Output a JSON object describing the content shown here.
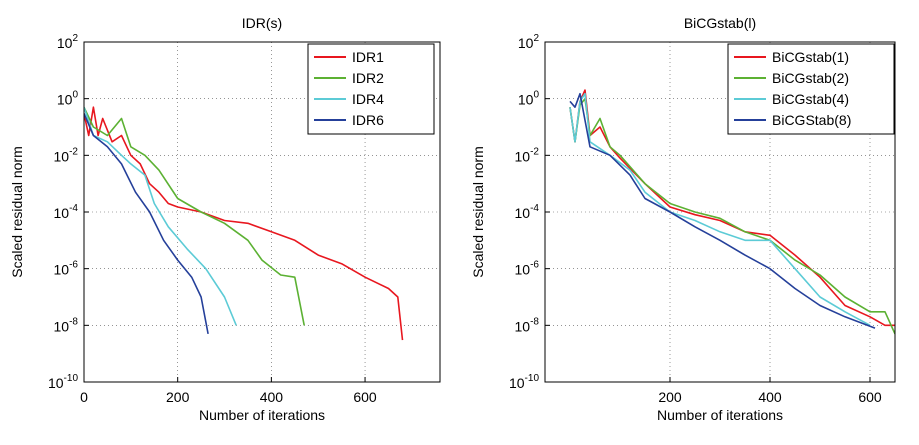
{
  "chart_data": [
    {
      "type": "line",
      "title": "IDR(s)",
      "x_label": "Number of iterations",
      "y_label": "Scaled residual norm",
      "log_y": true,
      "grid": true,
      "legend": "upper right",
      "xlim": [
        0,
        760
      ],
      "xticks": [
        0,
        200,
        400,
        600
      ],
      "ylim": [
        1e-10,
        100
      ],
      "yticks": [
        {
          "value": 100,
          "label": "10^2"
        },
        {
          "value": 1,
          "label": "10^0"
        },
        {
          "value": 0.01,
          "label": "10^-2"
        },
        {
          "value": 0.0001,
          "label": "10^-4"
        },
        {
          "value": 1e-06,
          "label": "10^-6"
        },
        {
          "value": 1e-08,
          "label": "10^-8"
        },
        {
          "value": 1e-10,
          "label": "10^-10"
        }
      ],
      "series": [
        {
          "name": "IDR1",
          "color": "#e8171f",
          "x": [
            0,
            10,
            20,
            30,
            40,
            60,
            80,
            100,
            120,
            140,
            160,
            180,
            200,
            250,
            300,
            350,
            400,
            450,
            500,
            550,
            600,
            650,
            670,
            680
          ],
          "values": [
            0.3,
            0.05,
            0.5,
            0.05,
            0.2,
            0.03,
            0.05,
            0.01,
            0.005,
            0.001,
            0.0005,
            0.0002,
            0.00015,
            0.0001,
            5e-05,
            4e-05,
            2e-05,
            1e-05,
            3e-06,
            1.5e-06,
            5e-07,
            2e-07,
            1e-07,
            3e-09
          ]
        },
        {
          "name": "IDR2",
          "color": "#5cb133",
          "x": [
            0,
            20,
            50,
            80,
            100,
            130,
            160,
            200,
            250,
            300,
            350,
            380,
            420,
            450,
            470
          ],
          "values": [
            0.5,
            0.1,
            0.05,
            0.2,
            0.02,
            0.01,
            0.003,
            0.0003,
            0.0001,
            4e-05,
            1e-05,
            2e-06,
            6e-07,
            5e-07,
            1e-08
          ]
        },
        {
          "name": "IDR4",
          "color": "#5ccbd6",
          "x": [
            0,
            20,
            50,
            80,
            100,
            130,
            150,
            180,
            220,
            260,
            300,
            325
          ],
          "values": [
            0.5,
            0.05,
            0.03,
            0.01,
            0.005,
            0.002,
            0.0002,
            3e-05,
            5e-06,
            1e-06,
            1e-07,
            1e-08
          ]
        },
        {
          "name": "IDR6",
          "color": "#25409a",
          "x": [
            0,
            20,
            50,
            80,
            110,
            140,
            170,
            200,
            230,
            250,
            265
          ],
          "values": [
            0.3,
            0.05,
            0.02,
            0.005,
            0.0005,
            0.0001,
            1e-05,
            2e-06,
            5e-07,
            1e-07,
            5e-09
          ]
        }
      ]
    },
    {
      "type": "line",
      "title": "BiCGstab(l)",
      "x_label": "Number of iterations",
      "y_label": "Scaled residual norm",
      "log_y": true,
      "grid": true,
      "legend": "upper right",
      "xlim": [
        -50,
        650
      ],
      "xticks": [
        200,
        400,
        600
      ],
      "ylim": [
        1e-10,
        100
      ],
      "yticks": [
        {
          "value": 100,
          "label": "10^2"
        },
        {
          "value": 1,
          "label": "10^0"
        },
        {
          "value": 0.01,
          "label": "10^-2"
        },
        {
          "value": 0.0001,
          "label": "10^-4"
        },
        {
          "value": 1e-06,
          "label": "10^-6"
        },
        {
          "value": 1e-08,
          "label": "10^-8"
        },
        {
          "value": 1e-10,
          "label": "10^-10"
        }
      ],
      "series": [
        {
          "name": "BiCGstab(1)",
          "color": "#e8171f",
          "x": [
            0,
            10,
            20,
            30,
            40,
            60,
            80,
            100,
            150,
            200,
            250,
            300,
            350,
            400,
            450,
            500,
            550,
            600,
            630,
            650
          ],
          "values": [
            0.5,
            0.03,
            0.8,
            2,
            0.05,
            0.1,
            0.02,
            0.008,
            0.001,
            0.00015,
            8e-05,
            5e-05,
            2e-05,
            1.5e-05,
            3e-06,
            5e-07,
            5e-08,
            2e-08,
            1e-08,
            1e-08
          ]
        },
        {
          "name": "BiCGstab(2)",
          "color": "#5cb133",
          "x": [
            0,
            10,
            20,
            30,
            40,
            60,
            80,
            100,
            150,
            200,
            250,
            300,
            350,
            400,
            450,
            500,
            550,
            600,
            630,
            650
          ],
          "values": [
            0.5,
            0.03,
            0.6,
            1,
            0.05,
            0.2,
            0.02,
            0.01,
            0.001,
            0.0002,
            0.0001,
            6e-05,
            2e-05,
            1e-05,
            2e-06,
            6e-07,
            1e-07,
            3e-08,
            3e-08,
            5e-09
          ]
        },
        {
          "name": "BiCGstab(4)",
          "color": "#5ccbd6",
          "x": [
            0,
            10,
            20,
            30,
            40,
            80,
            120,
            150,
            200,
            250,
            300,
            350,
            400,
            450,
            500,
            550,
            600
          ],
          "values": [
            0.5,
            0.03,
            0.8,
            1.5,
            0.03,
            0.01,
            0.003,
            0.0005,
            0.0001,
            5e-05,
            2e-05,
            1e-05,
            1e-05,
            1e-06,
            1e-07,
            3e-08,
            1e-08
          ]
        },
        {
          "name": "BiCGStab(8)",
          "color": "#25409a",
          "x": [
            0,
            10,
            20,
            40,
            80,
            120,
            150,
            200,
            250,
            300,
            350,
            400,
            450,
            500,
            550,
            610
          ],
          "values": [
            0.8,
            0.5,
            1.5,
            0.02,
            0.01,
            0.002,
            0.0003,
            0.0001,
            3e-05,
            1e-05,
            3e-06,
            1e-06,
            2e-07,
            5e-08,
            2e-08,
            8e-09
          ]
        }
      ]
    }
  ]
}
